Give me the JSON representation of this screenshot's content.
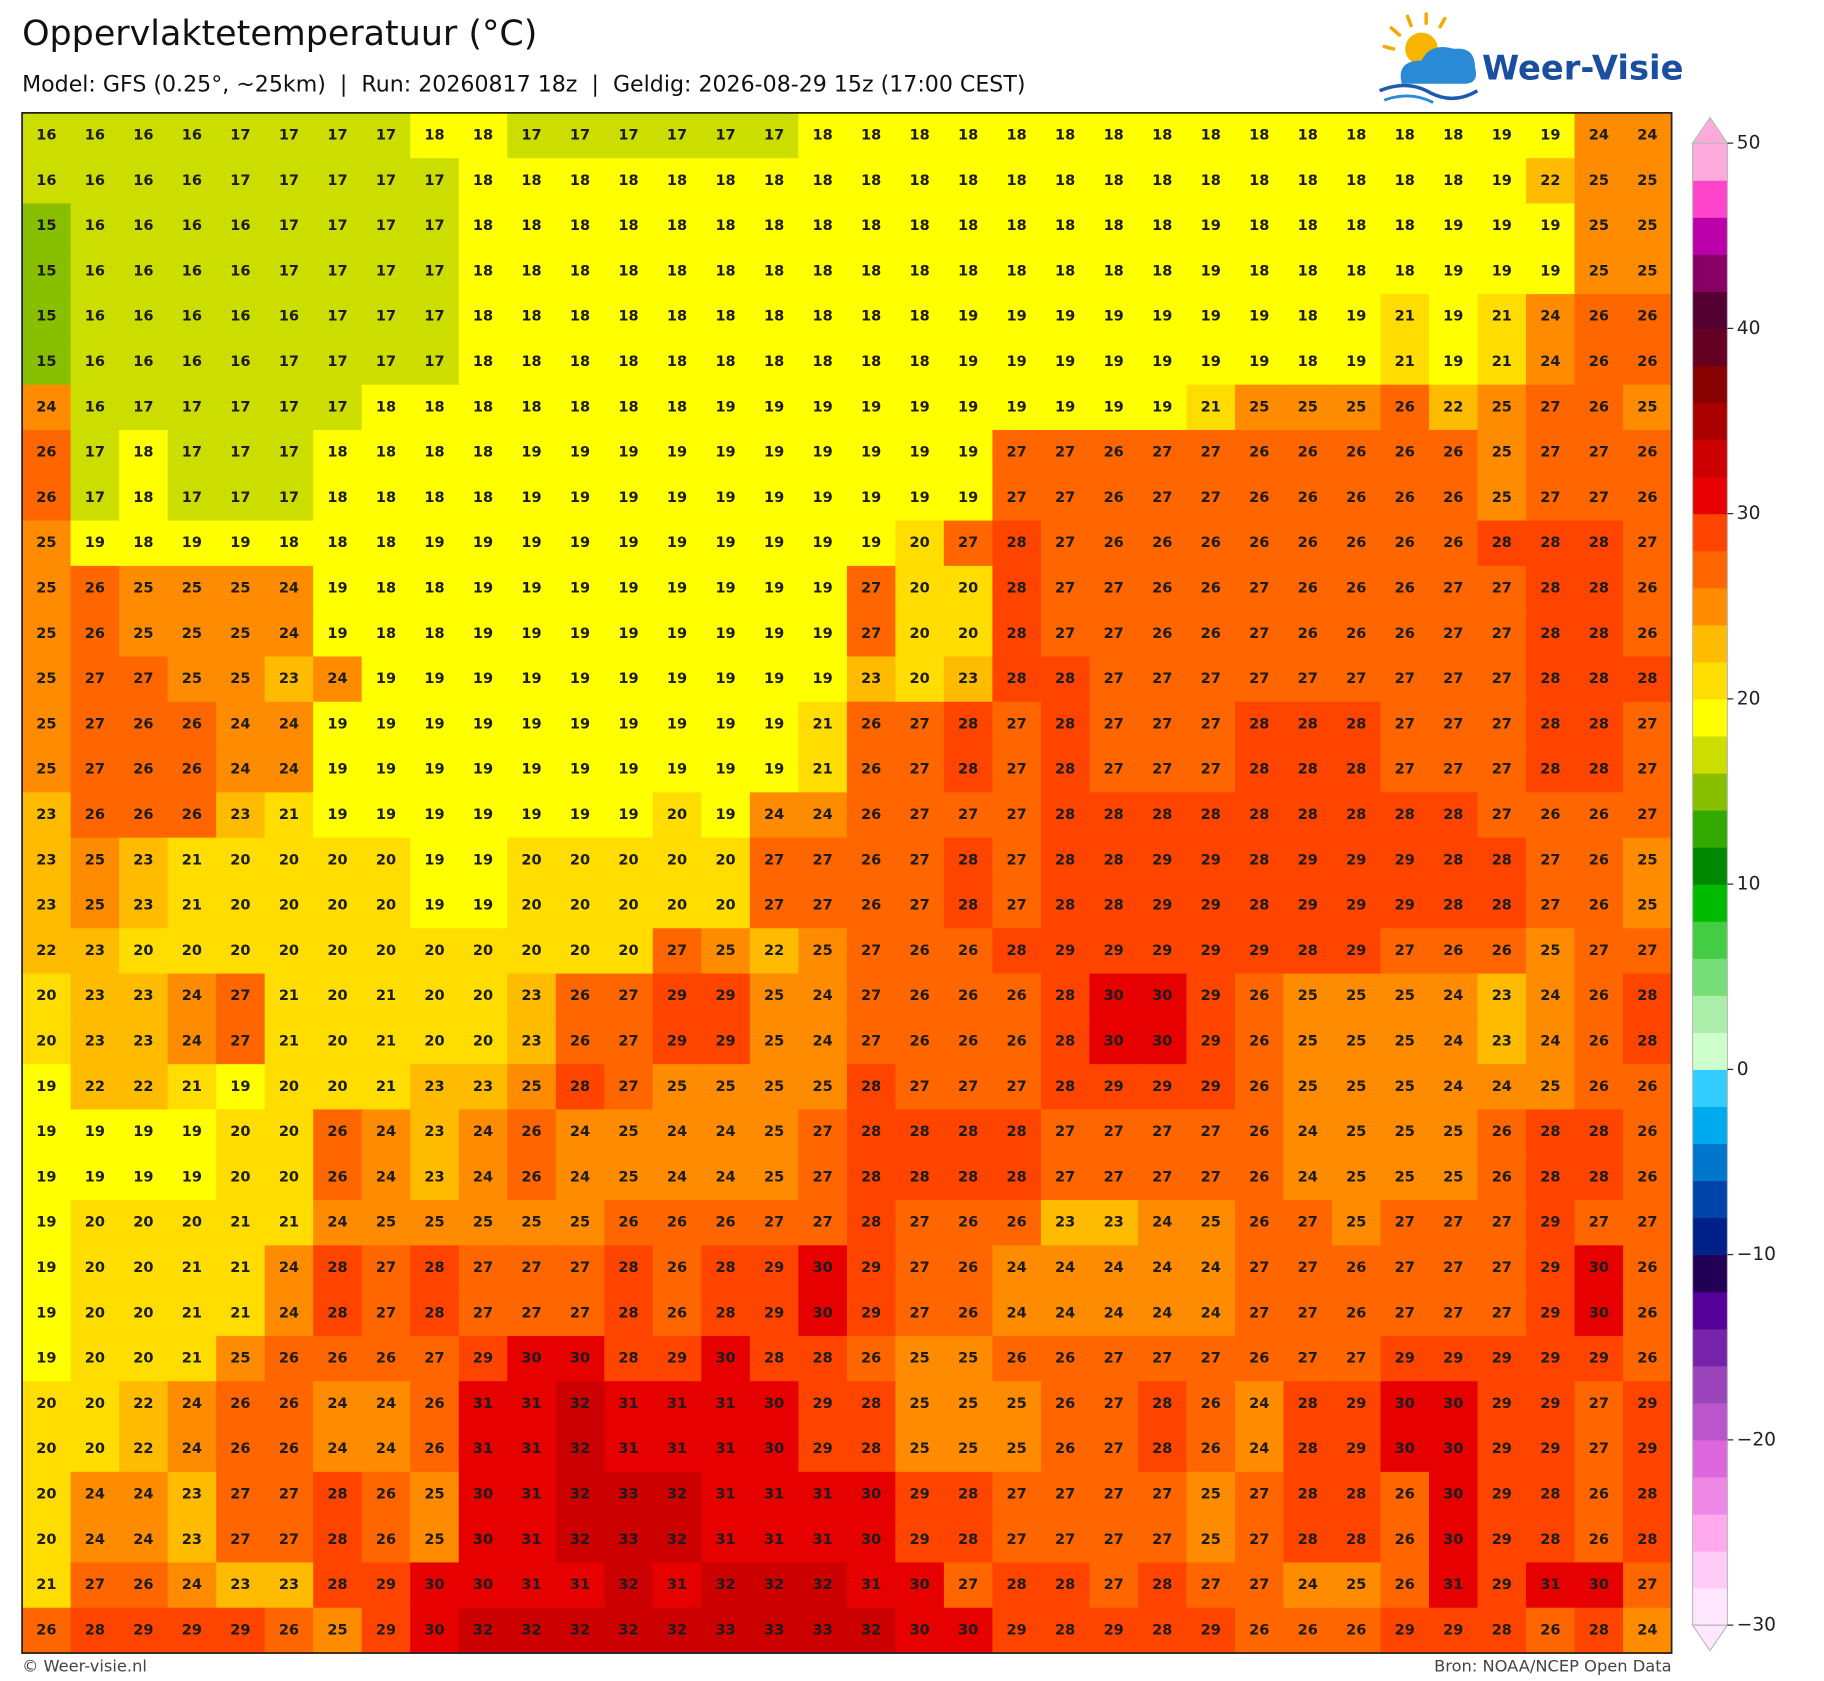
{
  "header": {
    "title": "Oppervlaktetemperatuur (°C)",
    "subtitle": "Model: GFS (0.25°, ~25km)  |  Run: 20260817 18z  |  Geldig: 2026-08-29 15z (17:00 CEST)"
  },
  "logo": {
    "text": "Weer-Visie"
  },
  "map": {
    "rows": [
      [
        16,
        16,
        16,
        16,
        17,
        17,
        17,
        17,
        18,
        18,
        17,
        17,
        17,
        17,
        17,
        17,
        18,
        18,
        18,
        18,
        18,
        18,
        18,
        18,
        18,
        18,
        18,
        18,
        18,
        18,
        19,
        19,
        24,
        24
      ],
      [
        16,
        16,
        16,
        16,
        17,
        17,
        17,
        17,
        17,
        18,
        18,
        18,
        18,
        18,
        18,
        18,
        18,
        18,
        18,
        18,
        18,
        18,
        18,
        18,
        18,
        18,
        18,
        18,
        18,
        18,
        19,
        22,
        25,
        25
      ],
      [
        15,
        16,
        16,
        16,
        16,
        17,
        17,
        17,
        17,
        18,
        18,
        18,
        18,
        18,
        18,
        18,
        18,
        18,
        18,
        18,
        18,
        18,
        18,
        18,
        19,
        18,
        18,
        18,
        18,
        19,
        19,
        19,
        25,
        25
      ],
      [
        15,
        16,
        16,
        16,
        16,
        17,
        17,
        17,
        17,
        18,
        18,
        18,
        18,
        18,
        18,
        18,
        18,
        18,
        18,
        18,
        18,
        18,
        18,
        18,
        19,
        18,
        18,
        18,
        18,
        19,
        19,
        19,
        25,
        25
      ],
      [
        15,
        16,
        16,
        16,
        16,
        16,
        17,
        17,
        17,
        18,
        18,
        18,
        18,
        18,
        18,
        18,
        18,
        18,
        18,
        19,
        19,
        19,
        19,
        19,
        19,
        19,
        18,
        19,
        21,
        19,
        21,
        24,
        26,
        26
      ],
      [
        15,
        16,
        16,
        16,
        16,
        17,
        17,
        17,
        17,
        18,
        18,
        18,
        18,
        18,
        18,
        18,
        18,
        18,
        18,
        19,
        19,
        19,
        19,
        19,
        19,
        19,
        18,
        19,
        21,
        19,
        21,
        24,
        26,
        26
      ],
      [
        24,
        16,
        17,
        17,
        17,
        17,
        17,
        18,
        18,
        18,
        18,
        18,
        18,
        18,
        19,
        19,
        19,
        19,
        19,
        19,
        19,
        19,
        19,
        19,
        21,
        25,
        25,
        25,
        26,
        22,
        25,
        27,
        26,
        25
      ],
      [
        26,
        17,
        18,
        17,
        17,
        17,
        18,
        18,
        18,
        18,
        19,
        19,
        19,
        19,
        19,
        19,
        19,
        19,
        19,
        19,
        27,
        27,
        26,
        27,
        27,
        26,
        26,
        26,
        26,
        26,
        25,
        27,
        27,
        26
      ],
      [
        26,
        17,
        18,
        17,
        17,
        17,
        18,
        18,
        18,
        18,
        19,
        19,
        19,
        19,
        19,
        19,
        19,
        19,
        19,
        19,
        27,
        27,
        26,
        27,
        27,
        26,
        26,
        26,
        26,
        26,
        25,
        27,
        27,
        26
      ],
      [
        25,
        19,
        18,
        19,
        19,
        18,
        18,
        18,
        19,
        19,
        19,
        19,
        19,
        19,
        19,
        19,
        19,
        19,
        20,
        27,
        28,
        27,
        26,
        26,
        26,
        26,
        26,
        26,
        26,
        26,
        28,
        28,
        28,
        27
      ],
      [
        25,
        26,
        25,
        25,
        25,
        24,
        19,
        18,
        18,
        19,
        19,
        19,
        19,
        19,
        19,
        19,
        19,
        27,
        20,
        20,
        28,
        27,
        27,
        26,
        26,
        27,
        26,
        26,
        26,
        27,
        27,
        28,
        28,
        26
      ],
      [
        25,
        26,
        25,
        25,
        25,
        24,
        19,
        18,
        18,
        19,
        19,
        19,
        19,
        19,
        19,
        19,
        19,
        27,
        20,
        20,
        28,
        27,
        27,
        26,
        26,
        27,
        26,
        26,
        26,
        27,
        27,
        28,
        28,
        26
      ],
      [
        25,
        27,
        27,
        25,
        25,
        23,
        24,
        19,
        19,
        19,
        19,
        19,
        19,
        19,
        19,
        19,
        19,
        23,
        20,
        23,
        28,
        28,
        27,
        27,
        27,
        27,
        27,
        27,
        27,
        27,
        27,
        28,
        28,
        28
      ],
      [
        25,
        27,
        26,
        26,
        24,
        24,
        19,
        19,
        19,
        19,
        19,
        19,
        19,
        19,
        19,
        19,
        21,
        26,
        27,
        28,
        27,
        28,
        27,
        27,
        27,
        28,
        28,
        28,
        27,
        27,
        27,
        28,
        28,
        27
      ],
      [
        25,
        27,
        26,
        26,
        24,
        24,
        19,
        19,
        19,
        19,
        19,
        19,
        19,
        19,
        19,
        19,
        21,
        26,
        27,
        28,
        27,
        28,
        27,
        27,
        27,
        28,
        28,
        28,
        27,
        27,
        27,
        28,
        28,
        27
      ],
      [
        23,
        26,
        26,
        26,
        23,
        21,
        19,
        19,
        19,
        19,
        19,
        19,
        19,
        20,
        19,
        24,
        24,
        26,
        27,
        27,
        27,
        28,
        28,
        28,
        28,
        28,
        28,
        28,
        28,
        28,
        27,
        26,
        26,
        27
      ],
      [
        23,
        25,
        23,
        21,
        20,
        20,
        20,
        20,
        19,
        19,
        20,
        20,
        20,
        20,
        20,
        27,
        27,
        26,
        27,
        28,
        27,
        28,
        28,
        29,
        29,
        28,
        29,
        29,
        29,
        28,
        28,
        27,
        26,
        25
      ],
      [
        23,
        25,
        23,
        21,
        20,
        20,
        20,
        20,
        19,
        19,
        20,
        20,
        20,
        20,
        20,
        27,
        27,
        26,
        27,
        28,
        27,
        28,
        28,
        29,
        29,
        28,
        29,
        29,
        29,
        28,
        28,
        27,
        26,
        25
      ],
      [
        22,
        23,
        20,
        20,
        20,
        20,
        20,
        20,
        20,
        20,
        20,
        20,
        20,
        27,
        25,
        22,
        25,
        27,
        26,
        26,
        28,
        29,
        29,
        29,
        29,
        29,
        28,
        29,
        27,
        26,
        26,
        25,
        27,
        27
      ],
      [
        20,
        23,
        23,
        24,
        27,
        21,
        20,
        21,
        20,
        20,
        23,
        26,
        27,
        29,
        29,
        25,
        24,
        27,
        26,
        26,
        26,
        28,
        30,
        30,
        29,
        26,
        25,
        25,
        25,
        24,
        23,
        24,
        26,
        28
      ],
      [
        20,
        23,
        23,
        24,
        27,
        21,
        20,
        21,
        20,
        20,
        23,
        26,
        27,
        29,
        29,
        25,
        24,
        27,
        26,
        26,
        26,
        28,
        30,
        30,
        29,
        26,
        25,
        25,
        25,
        24,
        23,
        24,
        26,
        28
      ],
      [
        19,
        22,
        22,
        21,
        19,
        20,
        20,
        21,
        23,
        23,
        25,
        28,
        27,
        25,
        25,
        25,
        25,
        28,
        27,
        27,
        27,
        28,
        29,
        29,
        29,
        26,
        25,
        25,
        25,
        24,
        24,
        25,
        26,
        26
      ],
      [
        19,
        19,
        19,
        19,
        20,
        20,
        26,
        24,
        23,
        24,
        26,
        24,
        25,
        24,
        24,
        25,
        27,
        28,
        28,
        28,
        28,
        27,
        27,
        27,
        27,
        26,
        24,
        25,
        25,
        25,
        26,
        28,
        28,
        26
      ],
      [
        19,
        19,
        19,
        19,
        20,
        20,
        26,
        24,
        23,
        24,
        26,
        24,
        25,
        24,
        24,
        25,
        27,
        28,
        28,
        28,
        28,
        27,
        27,
        27,
        27,
        26,
        24,
        25,
        25,
        25,
        26,
        28,
        28,
        26
      ],
      [
        19,
        20,
        20,
        20,
        21,
        21,
        24,
        25,
        25,
        25,
        25,
        25,
        26,
        26,
        26,
        27,
        27,
        28,
        27,
        26,
        26,
        23,
        23,
        24,
        25,
        26,
        27,
        25,
        27,
        27,
        27,
        29,
        27,
        27
      ],
      [
        19,
        20,
        20,
        21,
        21,
        24,
        28,
        27,
        28,
        27,
        27,
        27,
        28,
        26,
        28,
        29,
        30,
        29,
        27,
        26,
        24,
        24,
        24,
        24,
        24,
        27,
        27,
        26,
        27,
        27,
        27,
        29,
        30,
        26
      ],
      [
        19,
        20,
        20,
        21,
        21,
        24,
        28,
        27,
        28,
        27,
        27,
        27,
        28,
        26,
        28,
        29,
        30,
        29,
        27,
        26,
        24,
        24,
        24,
        24,
        24,
        27,
        27,
        26,
        27,
        27,
        27,
        29,
        30,
        26
      ],
      [
        19,
        20,
        20,
        21,
        25,
        26,
        26,
        26,
        27,
        29,
        30,
        30,
        28,
        29,
        30,
        28,
        28,
        26,
        25,
        25,
        26,
        26,
        27,
        27,
        27,
        26,
        27,
        27,
        29,
        29,
        29,
        29,
        29,
        26
      ],
      [
        20,
        20,
        22,
        24,
        26,
        26,
        24,
        24,
        26,
        31,
        31,
        32,
        31,
        31,
        31,
        30,
        29,
        28,
        25,
        25,
        25,
        26,
        27,
        28,
        26,
        24,
        28,
        29,
        30,
        30,
        29,
        29,
        27,
        29
      ],
      [
        20,
        20,
        22,
        24,
        26,
        26,
        24,
        24,
        26,
        31,
        31,
        32,
        31,
        31,
        31,
        30,
        29,
        28,
        25,
        25,
        25,
        26,
        27,
        28,
        26,
        24,
        28,
        29,
        30,
        30,
        29,
        29,
        27,
        29
      ],
      [
        20,
        24,
        24,
        23,
        27,
        27,
        28,
        26,
        25,
        30,
        31,
        32,
        33,
        32,
        31,
        31,
        31,
        30,
        29,
        28,
        27,
        27,
        27,
        27,
        25,
        27,
        28,
        28,
        26,
        30,
        29,
        28,
        26,
        28
      ],
      [
        20,
        24,
        24,
        23,
        27,
        27,
        28,
        26,
        25,
        30,
        31,
        32,
        33,
        32,
        31,
        31,
        31,
        30,
        29,
        28,
        27,
        27,
        27,
        27,
        25,
        27,
        28,
        28,
        26,
        30,
        29,
        28,
        26,
        28
      ],
      [
        21,
        27,
        26,
        24,
        23,
        23,
        28,
        29,
        30,
        30,
        31,
        31,
        32,
        31,
        32,
        32,
        32,
        31,
        30,
        27,
        28,
        28,
        27,
        28,
        27,
        27,
        24,
        25,
        26,
        31,
        29,
        31,
        30,
        27
      ],
      [
        26,
        28,
        29,
        29,
        29,
        26,
        25,
        29,
        30,
        32,
        32,
        32,
        32,
        32,
        33,
        33,
        33,
        32,
        30,
        30,
        29,
        28,
        29,
        28,
        29,
        26,
        26,
        26,
        29,
        29,
        28,
        26,
        28,
        24
      ]
    ]
  },
  "colorbar": {
    "ticks": [
      50,
      40,
      30,
      20,
      10,
      0,
      {
        "value": -10,
        "label": "−10"
      },
      {
        "value": -20,
        "label": "−20"
      },
      {
        "value": -30,
        "label": "−30"
      }
    ]
  },
  "footer": {
    "copyright": "© Weer-visie.nl",
    "source": "Bron: NOAA/NCEP Open Data"
  }
}
